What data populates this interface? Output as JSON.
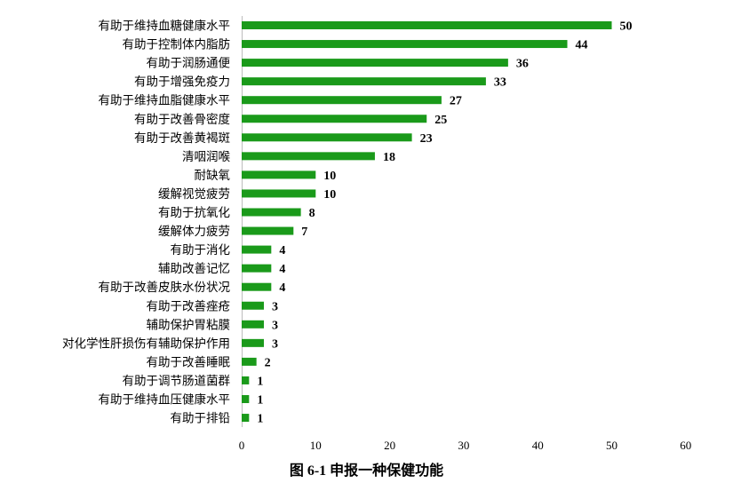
{
  "caption": "图 6-1 申报一种保健功能",
  "chart_data": {
    "type": "bar",
    "orientation": "horizontal",
    "categories": [
      "有助于维持血糖健康水平",
      "有助于控制体内脂肪",
      "有助于润肠通便",
      "有助于增强免疫力",
      "有助于维持血脂健康水平",
      "有助于改善骨密度",
      "有助于改善黄褐斑",
      "清咽润喉",
      "耐缺氧",
      "缓解视觉疲劳",
      "有助于抗氧化",
      "缓解体力疲劳",
      "有助于消化",
      "辅助改善记忆",
      "有助于改善皮肤水份状况",
      "有助于改善痤疮",
      "辅助保护胃粘膜",
      "对化学性肝损伤有辅助保护作用",
      "有助于改善睡眠",
      "有助于调节肠道菌群",
      "有助于维持血压健康水平",
      "有助于排铅"
    ],
    "values": [
      50,
      44,
      36,
      33,
      27,
      25,
      23,
      18,
      10,
      10,
      8,
      7,
      4,
      4,
      4,
      3,
      3,
      3,
      2,
      1,
      1,
      1
    ],
    "xlim": [
      0,
      60
    ],
    "xticks": [
      "0",
      "10",
      "20",
      "30",
      "40",
      "50",
      "60"
    ],
    "bar_color": "#1a9a1a",
    "data_labels": true,
    "grid": false,
    "xlabel": "",
    "ylabel": ""
  }
}
